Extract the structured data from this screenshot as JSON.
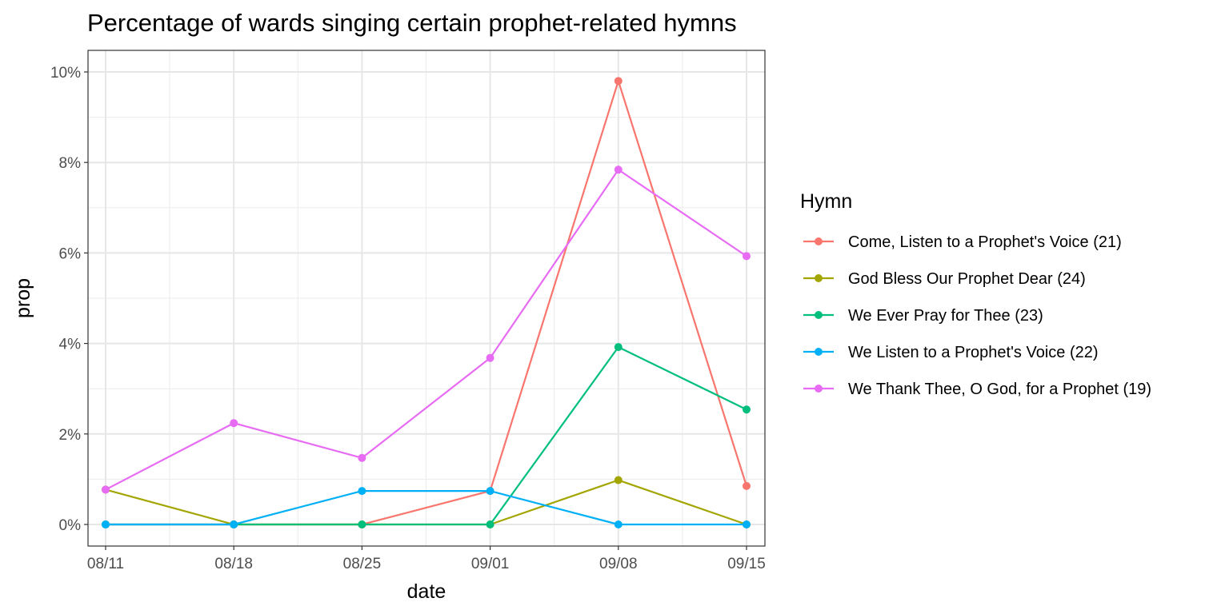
{
  "chart_data": {
    "type": "line",
    "title": "Percentage of wards singing certain prophet-related hymns",
    "xlabel": "date",
    "ylabel": "prop",
    "categories": [
      "08/11",
      "08/18",
      "08/25",
      "09/01",
      "09/08",
      "09/15"
    ],
    "ylim": [
      0,
      10
    ],
    "y_ticks": [
      "0%",
      "2%",
      "4%",
      "6%",
      "8%",
      "10%"
    ],
    "y_tick_values": [
      0,
      2,
      4,
      6,
      8,
      10
    ],
    "grid": true,
    "legend": {
      "title": "Hymn",
      "placement": "right"
    },
    "series": [
      {
        "name": "Come, Listen to a Prophet's Voice (21)",
        "color": "#F8766D",
        "values": [
          0,
          0,
          0,
          0.74,
          9.8,
          0.85
        ]
      },
      {
        "name": "God Bless Our Prophet Dear (24)",
        "color": "#A3A500",
        "values": [
          0.77,
          0,
          0,
          0,
          0.98,
          0
        ]
      },
      {
        "name": "We Ever Pray for Thee (23)",
        "color": "#00BF7D",
        "values": [
          0,
          0,
          0,
          0,
          3.92,
          2.54
        ]
      },
      {
        "name": "We Listen to a Prophet's Voice (22)",
        "color": "#00B0F6",
        "values": [
          0,
          0,
          0.74,
          0.74,
          0,
          0
        ]
      },
      {
        "name": "We Thank Thee, O God, for a Prophet (19)",
        "color": "#E76BF3",
        "values": [
          0.77,
          2.24,
          1.47,
          3.68,
          7.84,
          5.93
        ]
      }
    ]
  }
}
